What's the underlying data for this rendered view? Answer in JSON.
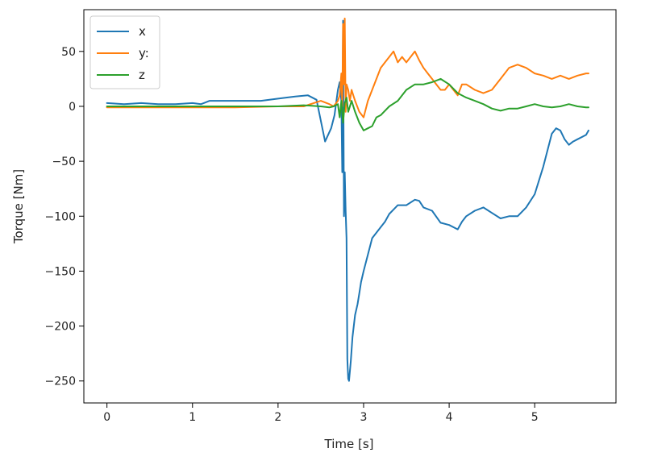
{
  "chart_data": {
    "type": "line",
    "title": "",
    "xlabel": "Time [s]",
    "ylabel": "Torque [Nm]",
    "xlim": [
      -0.27,
      5.95
    ],
    "ylim": [
      -270,
      88
    ],
    "xticks": [
      0,
      1,
      2,
      3,
      4,
      5
    ],
    "xtick_labels": [
      "0",
      "1",
      "2",
      "3",
      "4",
      "5"
    ],
    "yticks": [
      50,
      0,
      -50,
      -100,
      -150,
      -200,
      -250
    ],
    "ytick_labels": [
      "50",
      "0",
      "−50",
      "−100",
      "−150",
      "−200",
      "−250"
    ],
    "grid": false,
    "legend_position": "top-left",
    "colors": {
      "x": "#1f77b4",
      "y": "#ff7f0e",
      "z": "#2ca02c"
    },
    "series": [
      {
        "name": "x",
        "x": [
          0,
          0.2,
          0.4,
          0.6,
          0.8,
          1.0,
          1.1,
          1.2,
          1.4,
          1.6,
          1.8,
          2.0,
          2.2,
          2.35,
          2.45,
          2.55,
          2.62,
          2.66,
          2.7,
          2.72,
          2.74,
          2.75,
          2.76,
          2.77,
          2.78,
          2.79,
          2.8,
          2.81,
          2.82,
          2.83,
          2.85,
          2.87,
          2.9,
          2.93,
          2.95,
          2.97,
          3.0,
          3.05,
          3.1,
          3.2,
          3.25,
          3.3,
          3.35,
          3.4,
          3.5,
          3.6,
          3.65,
          3.7,
          3.8,
          3.9,
          4.0,
          4.1,
          4.15,
          4.2,
          4.3,
          4.4,
          4.5,
          4.6,
          4.7,
          4.8,
          4.9,
          5.0,
          5.1,
          5.2,
          5.25,
          5.3,
          5.35,
          5.4,
          5.45,
          5.5,
          5.6,
          5.63
        ],
        "y": [
          3,
          2,
          3,
          2,
          2,
          3,
          2,
          5,
          5,
          5,
          5,
          7,
          9,
          10,
          6,
          -32,
          -20,
          -8,
          15,
          22,
          5,
          -60,
          78,
          -100,
          -60,
          -95,
          -120,
          -230,
          -248,
          -250,
          -232,
          -210,
          -190,
          -180,
          -170,
          -160,
          -150,
          -135,
          -120,
          -110,
          -105,
          -98,
          -94,
          -90,
          -90,
          -85,
          -86,
          -92,
          -95,
          -106,
          -108,
          -112,
          -105,
          -100,
          -95,
          -92,
          -97,
          -102,
          -100,
          -100,
          -92,
          -80,
          -55,
          -25,
          -20,
          -22,
          -30,
          -35,
          -32,
          -30,
          -26,
          -22
        ]
      },
      {
        "name": "y:",
        "x": [
          0,
          0.5,
          1.0,
          1.5,
          2.0,
          2.3,
          2.5,
          2.6,
          2.65,
          2.7,
          2.72,
          2.74,
          2.75,
          2.76,
          2.77,
          2.78,
          2.79,
          2.8,
          2.82,
          2.84,
          2.86,
          2.88,
          2.9,
          2.95,
          3.0,
          3.05,
          3.1,
          3.15,
          3.2,
          3.25,
          3.3,
          3.35,
          3.4,
          3.45,
          3.5,
          3.55,
          3.6,
          3.65,
          3.7,
          3.75,
          3.8,
          3.85,
          3.9,
          3.95,
          4.0,
          4.05,
          4.1,
          4.15,
          4.2,
          4.3,
          4.4,
          4.5,
          4.6,
          4.7,
          4.8,
          4.9,
          5.0,
          5.1,
          5.2,
          5.3,
          5.4,
          5.5,
          5.6,
          5.63
        ],
        "y": [
          -1,
          -1,
          -1,
          -1,
          0,
          0,
          5,
          2,
          0,
          5,
          10,
          30,
          0,
          75,
          20,
          80,
          -5,
          20,
          15,
          5,
          15,
          10,
          5,
          -5,
          -10,
          5,
          15,
          25,
          35,
          40,
          45,
          50,
          40,
          45,
          40,
          45,
          50,
          42,
          35,
          30,
          25,
          20,
          15,
          15,
          20,
          15,
          10,
          20,
          20,
          15,
          12,
          15,
          25,
          35,
          38,
          35,
          30,
          28,
          25,
          28,
          25,
          28,
          30,
          30
        ]
      },
      {
        "name": "z",
        "x": [
          0,
          0.5,
          1.0,
          1.5,
          2.0,
          2.3,
          2.5,
          2.6,
          2.65,
          2.7,
          2.72,
          2.74,
          2.76,
          2.78,
          2.8,
          2.82,
          2.84,
          2.86,
          2.9,
          2.95,
          3.0,
          3.05,
          3.1,
          3.15,
          3.2,
          3.3,
          3.4,
          3.5,
          3.6,
          3.7,
          3.8,
          3.9,
          4.0,
          4.1,
          4.2,
          4.3,
          4.4,
          4.5,
          4.6,
          4.7,
          4.8,
          4.9,
          5.0,
          5.1,
          5.2,
          5.3,
          5.4,
          5.5,
          5.6,
          5.63
        ],
        "y": [
          0,
          0,
          0,
          0,
          0,
          1,
          0,
          -1,
          0,
          2,
          -10,
          5,
          -15,
          3,
          8,
          -5,
          0,
          5,
          -5,
          -15,
          -22,
          -20,
          -18,
          -10,
          -8,
          0,
          5,
          15,
          20,
          20,
          22,
          25,
          20,
          12,
          8,
          5,
          2,
          -2,
          -4,
          -2,
          -2,
          0,
          2,
          0,
          -1,
          0,
          2,
          0,
          -1,
          -1
        ]
      }
    ]
  }
}
